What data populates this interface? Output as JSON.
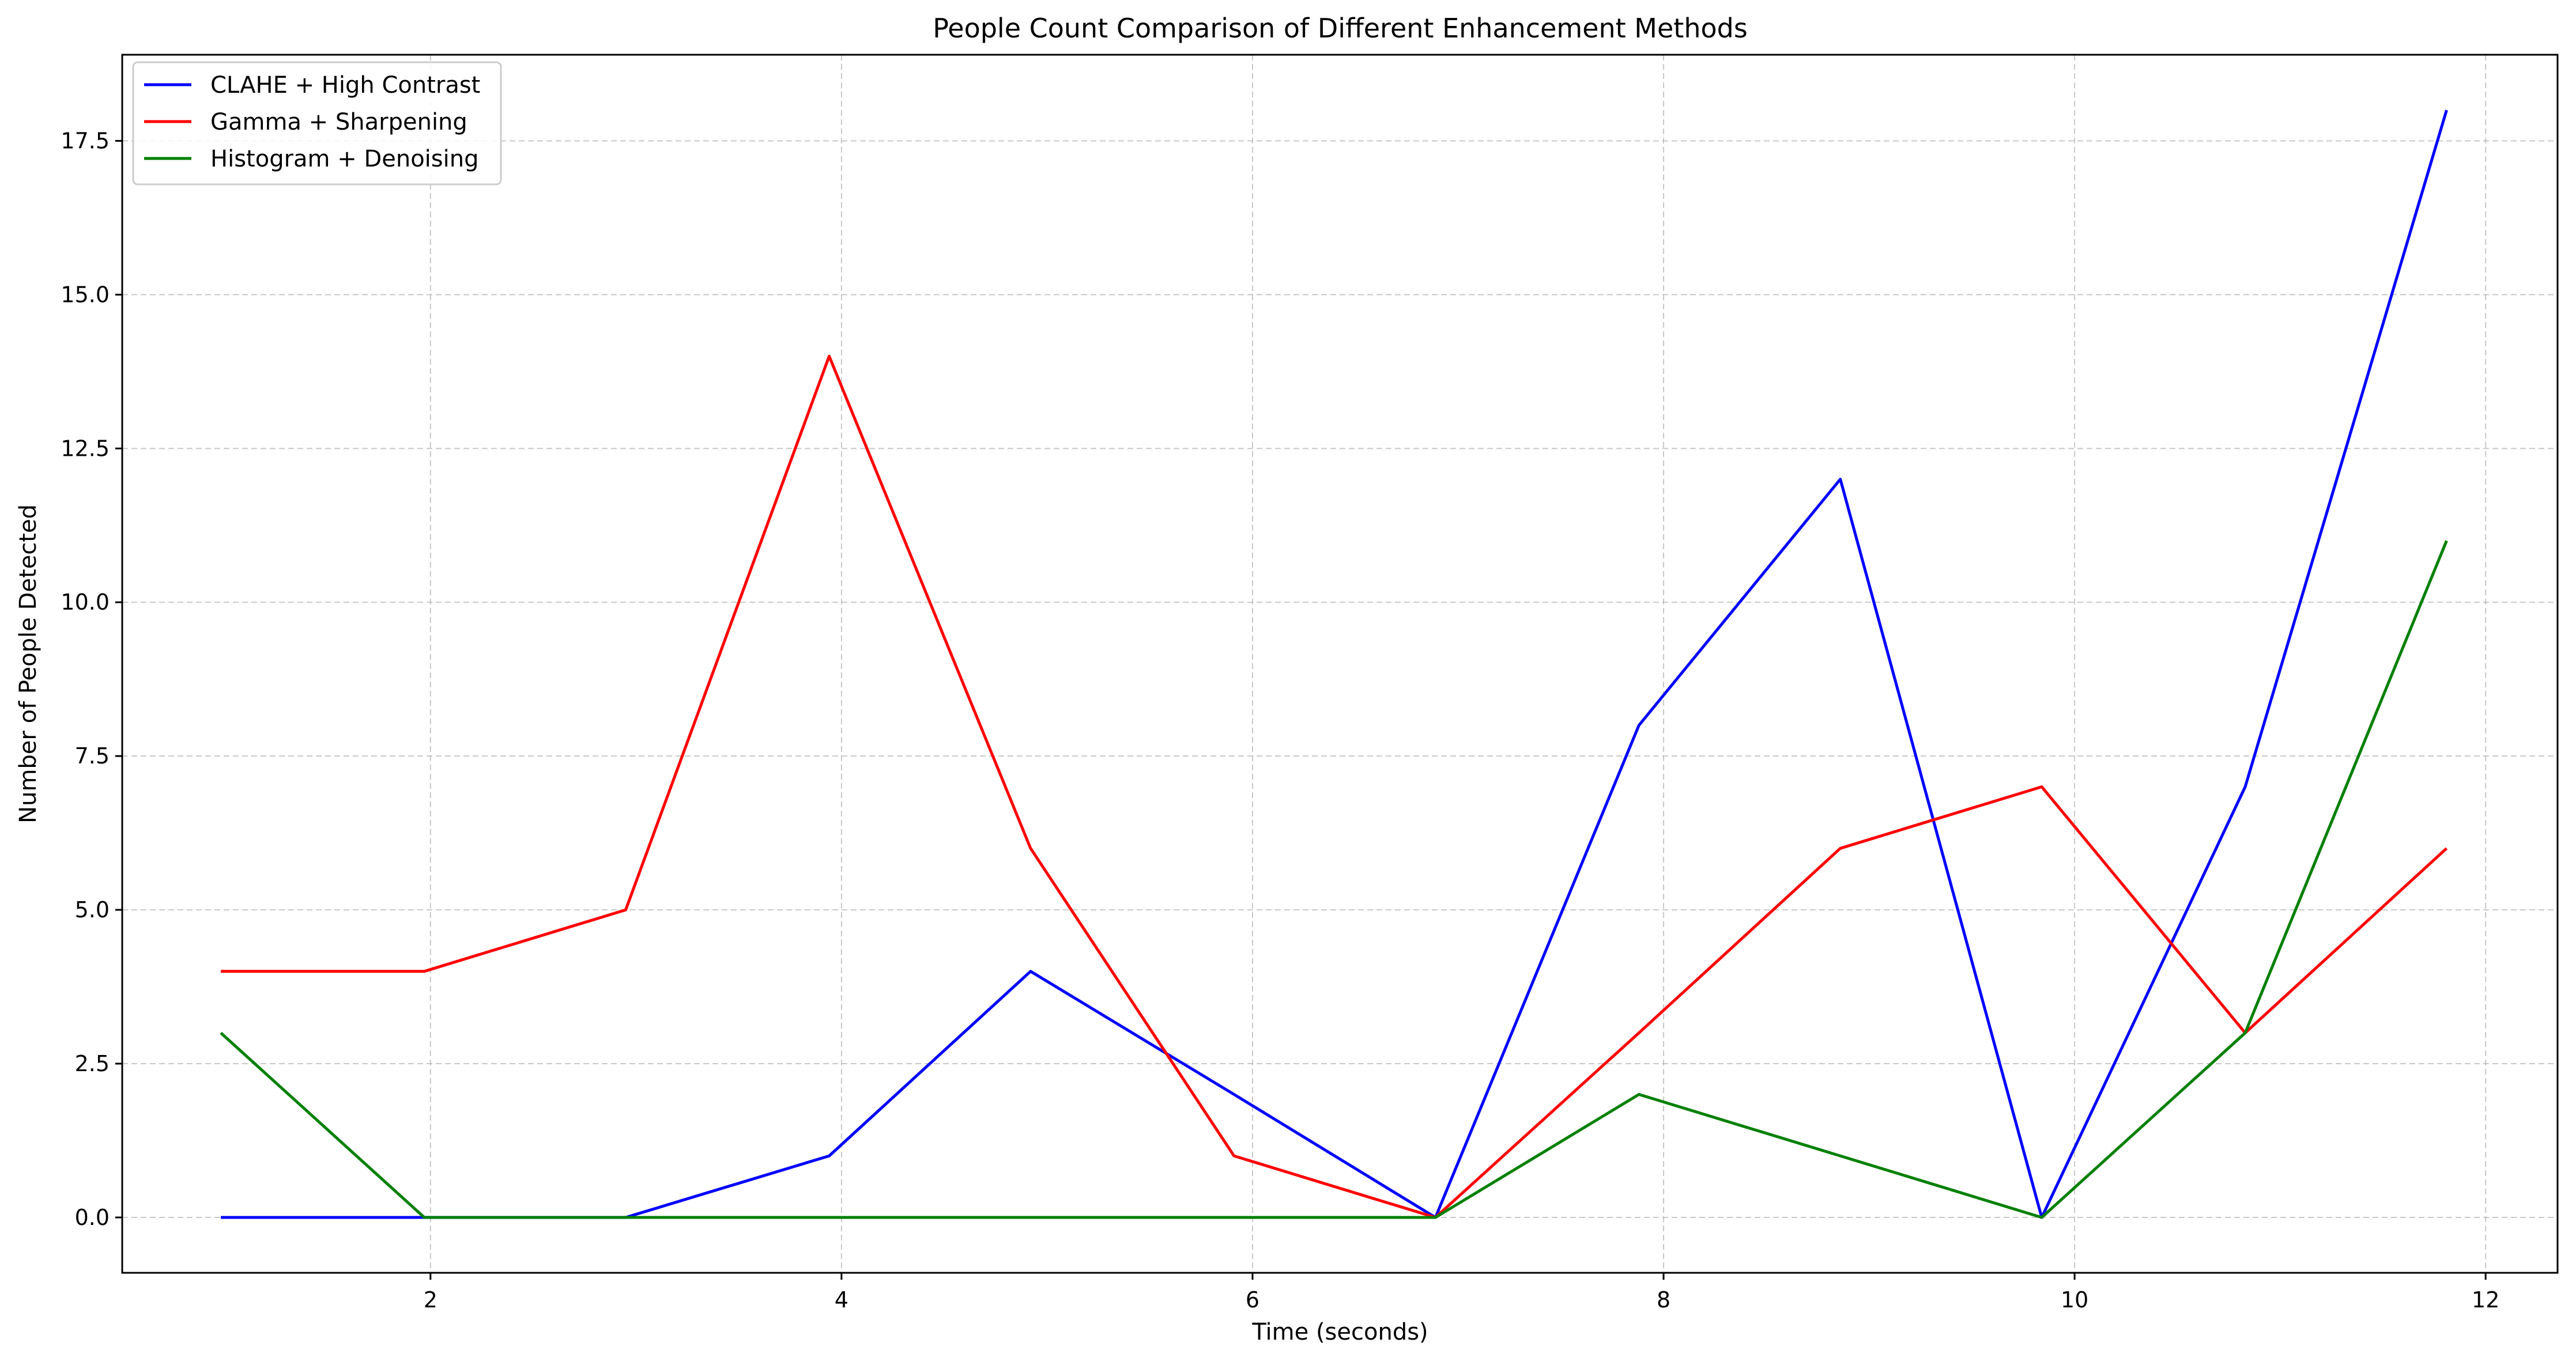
{
  "chart_data": {
    "type": "line",
    "title": "People Count Comparison of Different Enhancement Methods",
    "xlabel": "Time (seconds)",
    "ylabel": "Number of People Detected",
    "xlim": [
      0.5,
      12.35
    ],
    "ylim": [
      -0.9,
      18.9
    ],
    "xticks": [
      2,
      4,
      6,
      8,
      10,
      12
    ],
    "xtick_labels": [
      "2",
      "4",
      "6",
      "8",
      "10",
      "12"
    ],
    "yticks": [
      0.0,
      2.5,
      5.0,
      7.5,
      10.0,
      12.5,
      15.0,
      17.5
    ],
    "ytick_labels": [
      "0.0",
      "2.5",
      "5.0",
      "7.5",
      "10.0",
      "12.5",
      "15.0",
      "17.5"
    ],
    "grid": true,
    "legend_position": "top-left",
    "x": [
      0.98,
      1.97,
      2.95,
      3.94,
      4.92,
      5.91,
      6.89,
      7.88,
      8.86,
      9.84,
      10.83,
      11.81
    ],
    "series": [
      {
        "name": "CLAHE + High Contrast",
        "color": "#0000ff",
        "values": [
          0,
          0,
          0,
          1,
          4,
          2,
          0,
          8,
          12,
          0,
          7,
          18
        ]
      },
      {
        "name": "Gamma + Sharpening",
        "color": "#ff0000",
        "values": [
          4,
          4,
          5,
          14,
          6,
          1,
          0,
          3,
          6,
          7,
          3,
          6
        ]
      },
      {
        "name": "Histogram + Denoising",
        "color": "#008000",
        "values": [
          3,
          0,
          0,
          0,
          0,
          0,
          0,
          2,
          1,
          0,
          3,
          11
        ]
      }
    ]
  }
}
